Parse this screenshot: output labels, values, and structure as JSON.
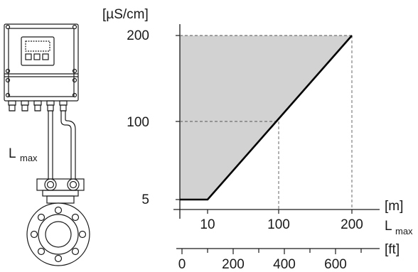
{
  "chart_data": {
    "type": "area",
    "ylabel": "[µS/cm]",
    "y_ticks": [
      "200",
      "100",
      "5"
    ],
    "x_unit_m": "[m]",
    "x_ticks_m": [
      "10",
      "100",
      "200"
    ],
    "x_unit_ft": "[ft]",
    "x_ticks_ft": [
      "0",
      "200",
      "400",
      "600"
    ],
    "xlabel_main": "L",
    "xlabel_sub": "max",
    "series": [
      {
        "x": [
          0,
          10,
          200
        ],
        "y": [
          5,
          5,
          200
        ]
      }
    ],
    "guide_points": [
      {
        "x": 100,
        "y": 100
      },
      {
        "x": 200,
        "y": 200
      }
    ],
    "fill_color": "#d2d2d2",
    "line_color": "#000000"
  },
  "device": {
    "cable_label_main": "L",
    "cable_label_sub": "max"
  }
}
